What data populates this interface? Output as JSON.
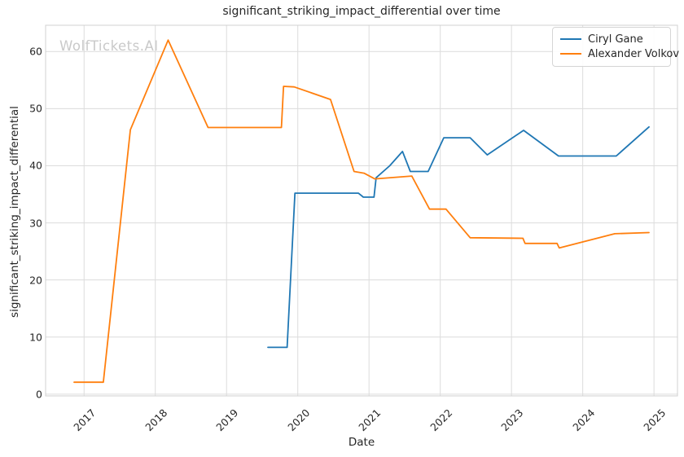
{
  "title": "significant_striking_impact_differential over time",
  "watermark": "WolfTickets.AI",
  "legend": {
    "position": "upper right"
  },
  "colors": {
    "gane_blue": "#1f77b4",
    "volkov_orange": "#ff7f0e",
    "grid": "#dcdcdc",
    "spine": "#d0d0d0",
    "text": "#262626",
    "watermark": "#c9c9c9"
  },
  "chart_data": {
    "type": "line",
    "title": "significant_striking_impact_differential over time",
    "xlabel": "Date",
    "ylabel": "significant_striking_impact_differential",
    "grid": true,
    "legend_position": "upper right",
    "xlim": [
      2016.46,
      2025.33
    ],
    "ylim": [
      -0.3,
      64.6
    ],
    "x_ticks": [
      2017,
      2018,
      2019,
      2020,
      2021,
      2022,
      2023,
      2024,
      2025
    ],
    "x_tick_labels": [
      "2017",
      "2018",
      "2019",
      "2020",
      "2021",
      "2022",
      "2023",
      "2024",
      "2025"
    ],
    "y_ticks": [
      0,
      10,
      20,
      30,
      40,
      50,
      60
    ],
    "y_tick_labels": [
      "0",
      "10",
      "20",
      "30",
      "40",
      "50",
      "60"
    ],
    "series": [
      {
        "name": "Ciryl Gane",
        "color": "#1f77b4",
        "points": [
          [
            2019.58,
            8.2
          ],
          [
            2019.85,
            8.2
          ],
          [
            2019.96,
            35.2
          ],
          [
            2020.85,
            35.2
          ],
          [
            2020.92,
            34.5
          ],
          [
            2021.07,
            34.5
          ],
          [
            2021.1,
            37.9
          ],
          [
            2021.29,
            40.0
          ],
          [
            2021.47,
            42.5
          ],
          [
            2021.58,
            39.0
          ],
          [
            2021.83,
            39.0
          ],
          [
            2022.05,
            44.9
          ],
          [
            2022.42,
            44.9
          ],
          [
            2022.66,
            41.9
          ],
          [
            2023.17,
            46.2
          ],
          [
            2023.66,
            41.7
          ],
          [
            2024.47,
            41.7
          ],
          [
            2024.93,
            46.8
          ]
        ]
      },
      {
        "name": "Alexander Volkov",
        "color": "#ff7f0e",
        "points": [
          [
            2016.86,
            2.1
          ],
          [
            2017.27,
            2.1
          ],
          [
            2017.65,
            46.3
          ],
          [
            2018.18,
            62.0
          ],
          [
            2018.74,
            46.7
          ],
          [
            2019.77,
            46.7
          ],
          [
            2019.8,
            53.9
          ],
          [
            2019.95,
            53.8
          ],
          [
            2020.46,
            51.6
          ],
          [
            2020.79,
            39.0
          ],
          [
            2020.93,
            38.7
          ],
          [
            2021.08,
            37.7
          ],
          [
            2021.6,
            38.2
          ],
          [
            2021.85,
            32.4
          ],
          [
            2022.08,
            32.4
          ],
          [
            2022.42,
            27.4
          ],
          [
            2023.16,
            27.3
          ],
          [
            2023.19,
            26.4
          ],
          [
            2023.64,
            26.4
          ],
          [
            2023.67,
            25.6
          ],
          [
            2024.45,
            28.1
          ],
          [
            2024.93,
            28.3
          ]
        ]
      }
    ]
  }
}
